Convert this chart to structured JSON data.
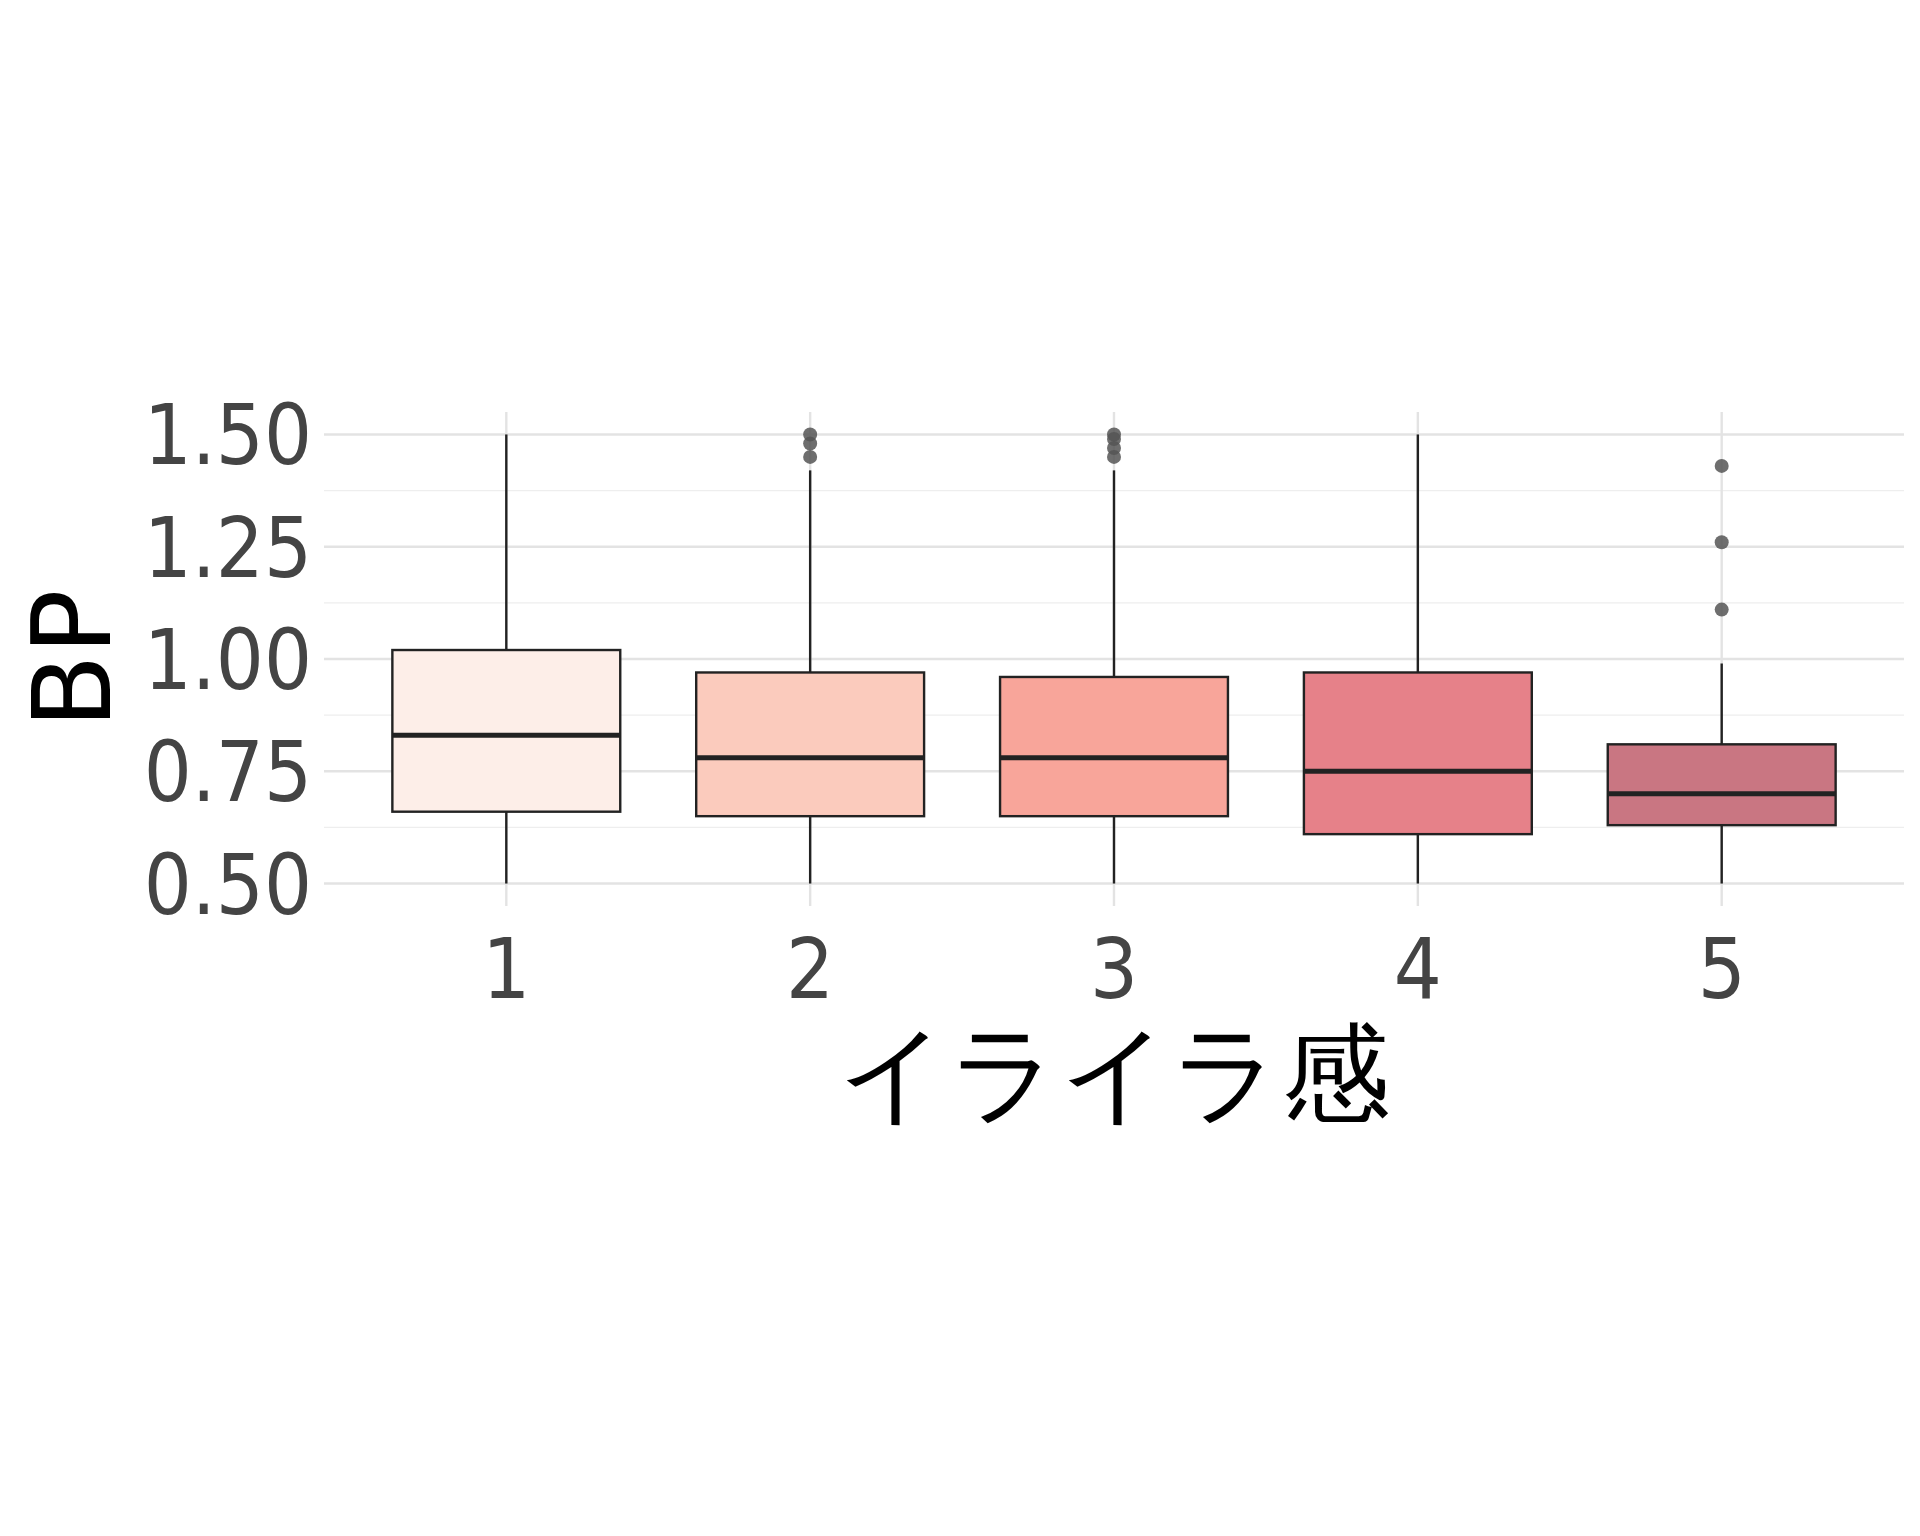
{
  "chart_data": {
    "type": "box",
    "xlabel": "イライラ感",
    "ylabel": "BP",
    "categories": [
      "1",
      "2",
      "3",
      "4",
      "5"
    ],
    "colors": [
      "#fdeee8",
      "#fbcbbd",
      "#f8a59a",
      "#e68189",
      "#c97682"
    ],
    "boxes": [
      {
        "low": 0.5,
        "q1": 0.66,
        "median": 0.83,
        "q3": 1.02,
        "high": 1.5
      },
      {
        "low": 0.5,
        "q1": 0.65,
        "median": 0.78,
        "q3": 0.97,
        "high": 1.42,
        "outliers": [
          1.5,
          1.48,
          1.45
        ]
      },
      {
        "low": 0.5,
        "q1": 0.65,
        "median": 0.78,
        "q3": 0.96,
        "high": 1.42,
        "outliers": [
          1.5,
          1.49,
          1.47,
          1.45
        ]
      },
      {
        "low": 0.5,
        "q1": 0.61,
        "median": 0.75,
        "q3": 0.97,
        "high": 1.5
      },
      {
        "low": 0.5,
        "q1": 0.63,
        "median": 0.7,
        "q3": 0.81,
        "high": 0.99,
        "outliers": [
          1.43,
          1.26,
          1.11
        ]
      }
    ],
    "ylim": [
      0.45,
      1.55
    ],
    "yticks": [
      {
        "value": 0.5,
        "label": "0.50"
      },
      0.75,
      {
        "value": 1,
        "label": "1.00"
      },
      1.25,
      {
        "value": 1.5,
        "label": "1.50"
      }
    ],
    "grid": true
  }
}
